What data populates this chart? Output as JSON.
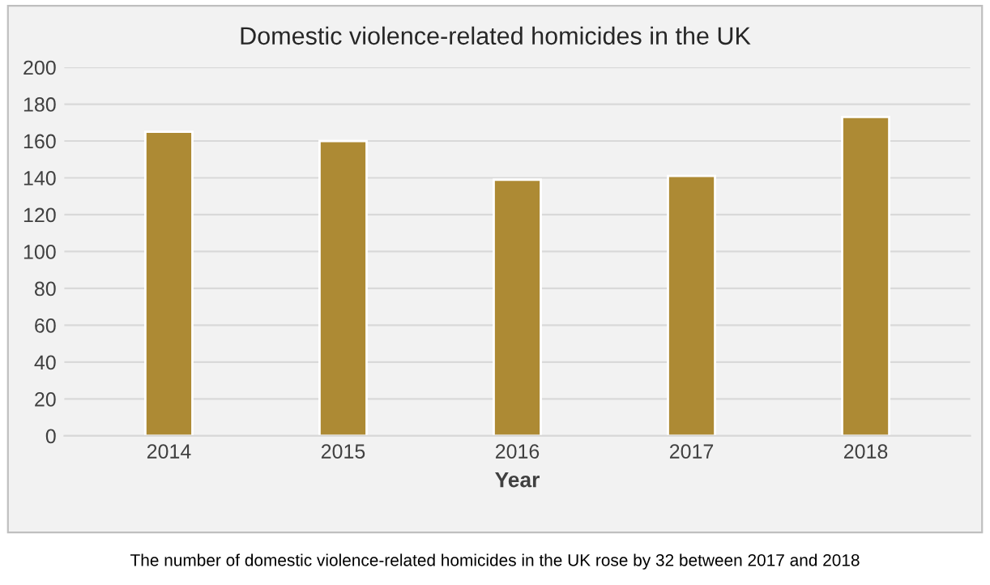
{
  "chart_data": {
    "type": "bar",
    "title": "Domestic violence-related homicides in the UK",
    "xlabel": "Year",
    "categories": [
      "2014",
      "2015",
      "2016",
      "2017",
      "2018"
    ],
    "values": [
      165,
      160,
      139,
      141,
      173
    ],
    "color": "#ad8a34",
    "ylim": [
      0,
      200
    ],
    "yticks": [
      0,
      20,
      40,
      60,
      80,
      100,
      120,
      140,
      160,
      180,
      200
    ],
    "grid": "y",
    "annotations": [
      "The number of domestic violence-related homicides in the UK rose by 32 between 2017 and 2018"
    ]
  }
}
